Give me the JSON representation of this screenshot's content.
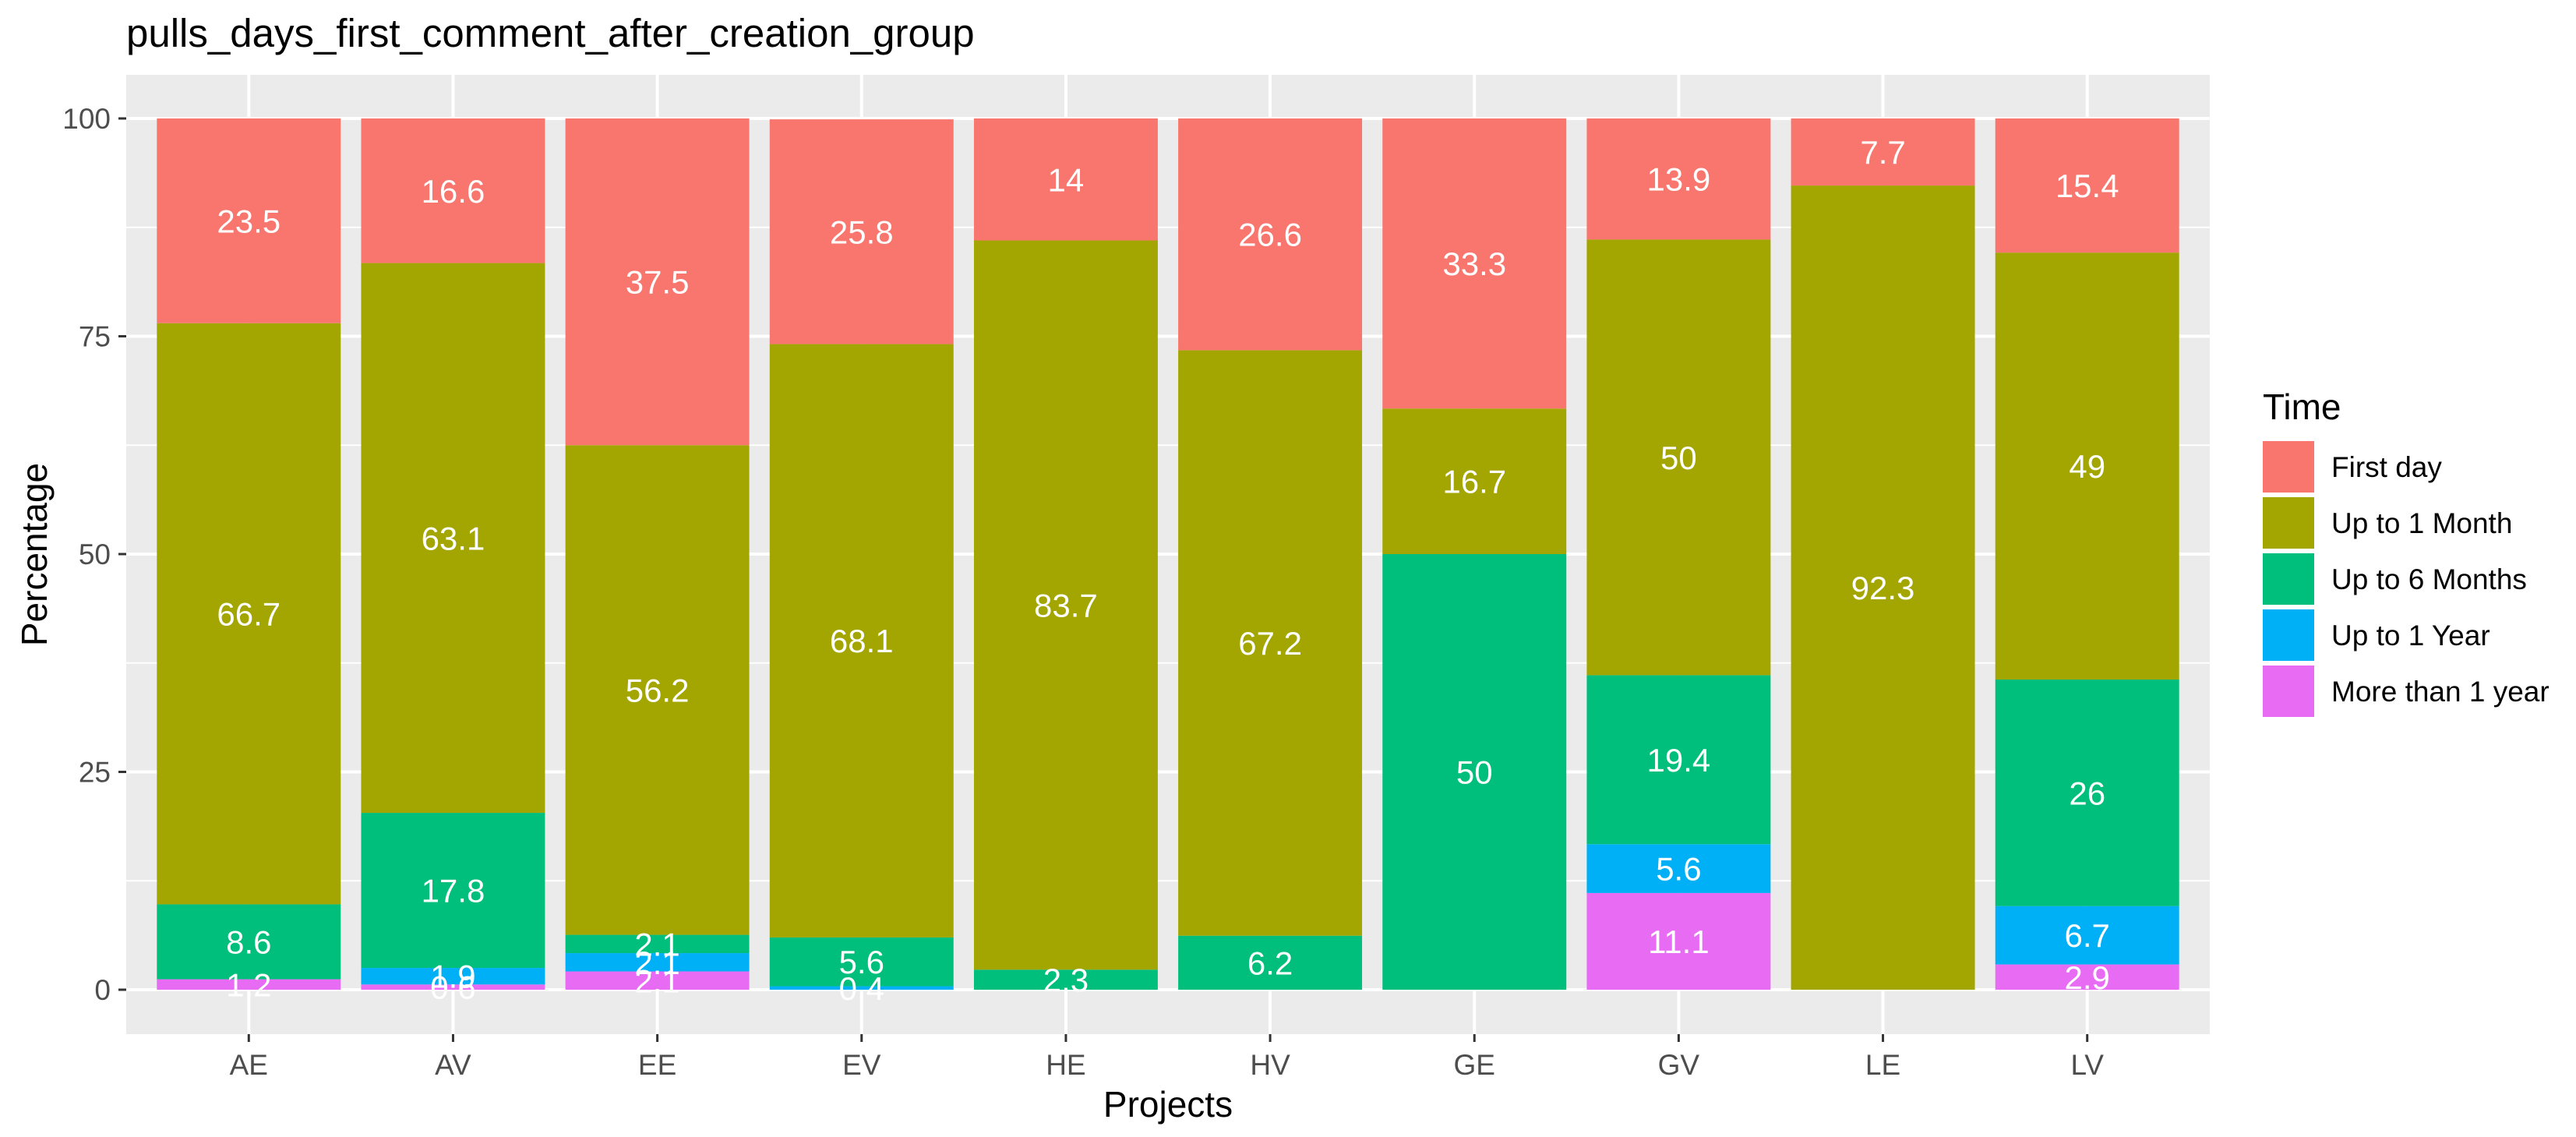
{
  "chart_data": {
    "type": "bar",
    "stacked": true,
    "title": "pulls_days_first_comment_after_creation_group",
    "xlabel": "Projects",
    "ylabel": "Percentage",
    "ylim": [
      0,
      100
    ],
    "yticks": [
      0,
      25,
      50,
      75,
      100
    ],
    "grid": true,
    "legend_position": "right",
    "legend_title": "Time",
    "categories": [
      "AE",
      "AV",
      "EE",
      "EV",
      "HE",
      "HV",
      "GE",
      "GV",
      "LE",
      "LV"
    ],
    "series": [
      {
        "name": "More than 1 year",
        "color": "#E76BF3",
        "values": [
          1.2,
          0.6,
          2.1,
          0.0,
          0.0,
          0.0,
          0.0,
          11.1,
          0.0,
          2.9
        ],
        "labels": [
          "1.2",
          "0.6",
          "2.1",
          "",
          "",
          "",
          "",
          "11.1",
          "",
          "2.9"
        ]
      },
      {
        "name": "Up to 1 Year",
        "color": "#00B0F6",
        "values": [
          0.0,
          1.9,
          2.1,
          0.4,
          0.0,
          0.0,
          0.0,
          5.6,
          0.0,
          6.7
        ],
        "labels": [
          "",
          "1.9",
          "2.1",
          "0.4",
          "",
          "",
          "",
          "5.6",
          "",
          "6.7"
        ]
      },
      {
        "name": "Up to 6 Months",
        "color": "#00BF7D",
        "values": [
          8.6,
          17.8,
          2.1,
          5.6,
          2.3,
          6.2,
          50.0,
          19.4,
          0.0,
          26.0
        ],
        "labels": [
          "8.6",
          "17.8",
          "2.1",
          "5.6",
          "2.3",
          "6.2",
          "50",
          "19.4",
          "",
          "26"
        ]
      },
      {
        "name": "Up to 1 Month",
        "color": "#A3A500",
        "values": [
          66.7,
          63.1,
          56.2,
          68.1,
          83.7,
          67.2,
          16.7,
          50.0,
          92.3,
          49.0
        ],
        "labels": [
          "66.7",
          "63.1",
          "56.2",
          "68.1",
          "83.7",
          "67.2",
          "16.7",
          "50",
          "92.3",
          "49"
        ]
      },
      {
        "name": "First day",
        "color": "#F8766D",
        "values": [
          23.5,
          16.6,
          37.5,
          25.8,
          14.0,
          26.6,
          33.3,
          13.9,
          7.7,
          15.4
        ],
        "labels": [
          "23.5",
          "16.6",
          "37.5",
          "25.8",
          "14",
          "26.6",
          "33.3",
          "13.9",
          "7.7",
          "15.4"
        ]
      }
    ],
    "legend_order": [
      "First day",
      "Up to 1 Month",
      "Up to 6 Months",
      "Up to 1 Year",
      "More than 1 year"
    ],
    "colors": {
      "panel_bg": "#EBEBEB",
      "grid": "#FFFFFF",
      "label_text": "#FFFFFF"
    }
  }
}
